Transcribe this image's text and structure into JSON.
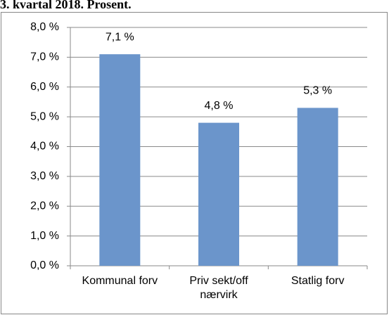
{
  "chart_data": {
    "type": "bar",
    "title": "3. kvartal 2018. Prosent.",
    "categories": [
      "Kommunal forv",
      "Priv sekt/off nærvirk",
      "Statlig forv"
    ],
    "values": [
      7.1,
      4.8,
      5.3
    ],
    "value_labels": [
      "7,1 %",
      "4,8 %",
      "5,3 %"
    ],
    "color": "#6b95cb",
    "ylim": [
      0,
      8
    ],
    "yticks": [
      {
        "value": 0,
        "label": "0,0 %"
      },
      {
        "value": 1,
        "label": "1,0 %"
      },
      {
        "value": 2,
        "label": "2,0 %"
      },
      {
        "value": 3,
        "label": "3,0 %"
      },
      {
        "value": 4,
        "label": "4,0 %"
      },
      {
        "value": 5,
        "label": "5,0 %"
      },
      {
        "value": 6,
        "label": "6,0 %"
      },
      {
        "value": 7,
        "label": "7,0 %"
      },
      {
        "value": 8,
        "label": "8,0 %"
      }
    ],
    "grid": true
  }
}
